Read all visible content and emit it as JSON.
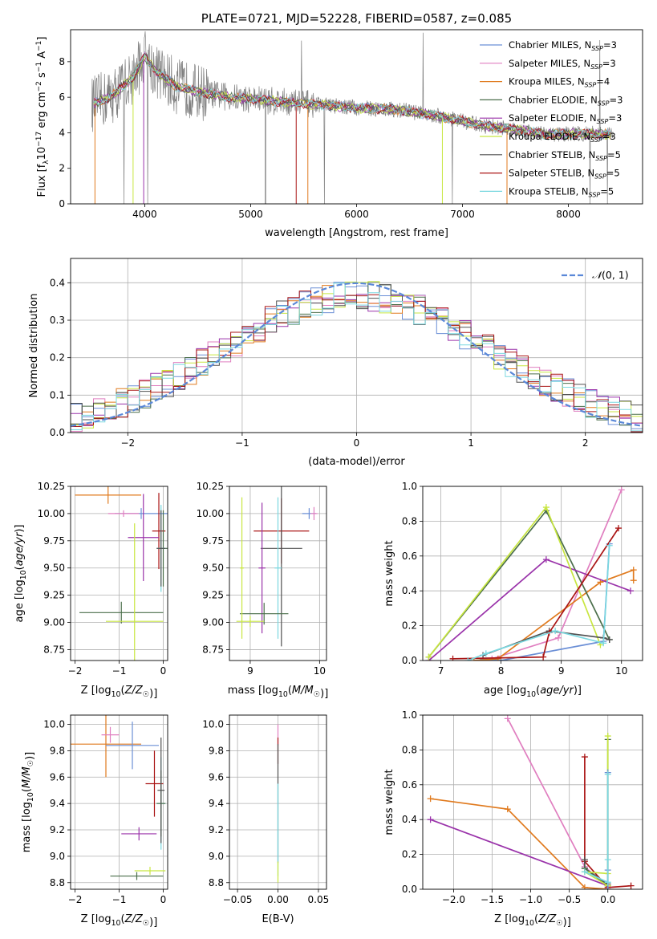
{
  "colors": {
    "Chabrier MILES": "#6b8fd6",
    "Salpeter MILES": "#e07fc0",
    "Kroupa MILES": "#e07a1e",
    "Chabrier ELODIE": "#4a6e4a",
    "Salpeter ELODIE": "#9a33aa",
    "Kroupa ELODIE": "#c8e640",
    "Chabrier STELIB": "#505050",
    "Salpeter STELIB": "#aa1515",
    "Kroupa STELIB": "#7ad8e0",
    "data": "#808080",
    "normal": "#5a88d8"
  },
  "legend_entries": [
    {
      "model": "Chabrier MILES",
      "n": "3"
    },
    {
      "model": "Salpeter MILES",
      "n": "3"
    },
    {
      "model": "Kroupa MILES",
      "n": "4"
    },
    {
      "model": "Chabrier ELODIE",
      "n": "3"
    },
    {
      "model": "Salpeter ELODIE",
      "n": "3"
    },
    {
      "model": "Kroupa ELODIE",
      "n": "3"
    },
    {
      "model": "Chabrier STELIB",
      "n": "5"
    },
    {
      "model": "Salpeter STELIB",
      "n": "5"
    },
    {
      "model": "Kroupa STELIB",
      "n": "5"
    }
  ],
  "chart_data": [
    {
      "id": "spectrum",
      "type": "line",
      "title": "PLATE=0721, MJD=52228, FIBERID=0587, z=0.085",
      "xlabel": "wavelength [Angstrom, rest frame]",
      "ylabel_parts": [
        "Flux [f",
        "λ",
        "10",
        "−17",
        " erg cm",
        "−2",
        " s",
        "−1",
        " A",
        "−1",
        "]"
      ],
      "legend_suffix_base": "N",
      "legend_suffix_sub": "SSP",
      "xlim": [
        3300,
        8700
      ],
      "ylim": [
        0,
        9.8
      ],
      "xticks": [
        4000,
        5000,
        6000,
        7000,
        8000
      ],
      "yticks": [
        0,
        2,
        4,
        6,
        8
      ],
      "continuum": [
        [
          3500,
          5.6
        ],
        [
          3700,
          6.1
        ],
        [
          3900,
          7.2
        ],
        [
          4000,
          8.3
        ],
        [
          4100,
          7.5
        ],
        [
          4300,
          6.6
        ],
        [
          4500,
          6.3
        ],
        [
          4800,
          6.0
        ],
        [
          5200,
          5.8
        ],
        [
          5600,
          5.6
        ],
        [
          6000,
          5.4
        ],
        [
          6400,
          5.3
        ],
        [
          6800,
          4.9
        ],
        [
          7200,
          4.4
        ],
        [
          7500,
          4.2
        ],
        [
          7800,
          3.9
        ],
        [
          8200,
          3.95
        ],
        [
          8400,
          3.9
        ]
      ]
    },
    {
      "id": "residuals",
      "type": "step",
      "xlabel": "(data-model)/error",
      "ylabel": "Normed distribution",
      "xlim": [
        -2.5,
        2.5
      ],
      "ylim": [
        0,
        0.465
      ],
      "xticks": [
        -2,
        -1,
        0,
        1,
        2
      ],
      "yticks": [
        0.0,
        0.1,
        0.2,
        0.3,
        0.4
      ],
      "grid": true,
      "normal_label_main": "𝒩",
      "normal_label_args": "(0, 1)",
      "bin_width": 0.1
    },
    {
      "id": "age_vs_Z",
      "type": "errorbar",
      "xlabel": "Z [log10(Z/Z☉)]",
      "ylabel": "age  [log10(age/yr)]",
      "xlim": [
        -2.1,
        0.1
      ],
      "ylim": [
        8.65,
        10.25
      ],
      "xticks": [
        -2,
        -1,
        0
      ],
      "yticks": [
        8.75,
        9.0,
        9.25,
        9.5,
        9.75,
        10.0,
        10.25
      ],
      "grid": true,
      "points": [
        {
          "m": "Kroupa MILES",
          "x": -1.25,
          "y": 10.17,
          "xerr": 0.75,
          "yerr": 0.08
        },
        {
          "m": "Chabrier MILES",
          "x": -0.5,
          "y": 10.0,
          "xerr": 0.6,
          "yerr": 0.05
        },
        {
          "m": "Salpeter MILES",
          "x": -0.9,
          "y": 10.0,
          "xerr": 0.35,
          "yerr": 0.03
        },
        {
          "m": "Salpeter STELIB",
          "x": -0.1,
          "y": 9.84,
          "xerr": 0.15,
          "yerr": 0.35
        },
        {
          "m": "Salpeter ELODIE",
          "x": -0.45,
          "y": 9.78,
          "xerr": 0.35,
          "yerr": 0.4
        },
        {
          "m": "Chabrier ELODIE",
          "x": 0.0,
          "y": 9.68,
          "xerr": 0.1,
          "yerr": 0.35
        },
        {
          "m": "Kroupa STELIB",
          "x": -0.05,
          "y": 9.68,
          "xerr": 0.1,
          "yerr": 0.4
        },
        {
          "m": "Chabrier STELIB",
          "x": -0.05,
          "y": 9.68,
          "xerr": 0.1,
          "yerr": 0.35
        },
        {
          "m": "Chabrier ELODIE",
          "x": -0.95,
          "y": 9.09,
          "xerr": 0.95,
          "yerr": 0.1
        },
        {
          "m": "Kroupa ELODIE",
          "x": -0.65,
          "y": 9.01,
          "xerr": 0.65,
          "yerr": 0.9
        }
      ]
    },
    {
      "id": "age_vs_mass",
      "type": "errorbar",
      "xlabel": "mass [log10(M/M☉)]",
      "ylabel": "",
      "xlim": [
        8.7,
        10.1
      ],
      "ylim": [
        8.65,
        10.25
      ],
      "xticks": [
        9,
        10
      ],
      "yticks": [
        8.75,
        9.0,
        9.25,
        9.5,
        9.75,
        10.0,
        10.25
      ],
      "grid": true,
      "points": [
        {
          "m": "Chabrier MILES",
          "x": 9.85,
          "y": 10.0,
          "xerr": 0.1,
          "yerr": 0.05
        },
        {
          "m": "Salpeter MILES",
          "x": 9.92,
          "y": 10.0,
          "xerr": 0.05,
          "yerr": 0.06
        },
        {
          "m": "Salpeter STELIB",
          "x": 9.45,
          "y": 9.84,
          "xerr": 0.4,
          "yerr": 0.3
        },
        {
          "m": "Chabrier STELIB",
          "x": 9.45,
          "y": 9.68,
          "xerr": 0.3,
          "yerr": 0.9
        },
        {
          "m": "Salpeter ELODIE",
          "x": 9.17,
          "y": 9.5,
          "xerr": 0.05,
          "yerr": 0.6
        },
        {
          "m": "Kroupa STELIB",
          "x": 9.4,
          "y": 9.5,
          "xerr": 0.05,
          "yerr": 0.65
        },
        {
          "m": "Chabrier ELODIE",
          "x": 9.2,
          "y": 9.08,
          "xerr": 0.35,
          "yerr": 0.1
        },
        {
          "m": "Kroupa ELODIE",
          "x": 9.0,
          "y": 9.01,
          "xerr": 0.2,
          "yerr": 0.05
        },
        {
          "m": "Kroupa ELODIE",
          "x": 8.88,
          "y": 9.5,
          "xerr": 0.03,
          "yerr": 0.65
        }
      ]
    },
    {
      "id": "weight_vs_age",
      "type": "line",
      "xlabel": "age  [log10(age/yr)]",
      "ylabel": "mass weight",
      "xlim": [
        6.7,
        10.35
      ],
      "ylim": [
        0,
        1.0
      ],
      "xticks": [
        7,
        8,
        9,
        10
      ],
      "yticks": [
        0.0,
        0.2,
        0.4,
        0.6,
        0.8,
        1.0
      ],
      "grid": true,
      "series": [
        {
          "m": "Salpeter MILES",
          "pts": [
            [
              7.85,
              0.01
            ],
            [
              8.95,
              0.13
            ],
            [
              10.0,
              0.98
            ]
          ]
        },
        {
          "m": "Chabrier MILES",
          "pts": [
            [
              7.7,
              0.01
            ],
            [
              8.0,
              0.0
            ],
            [
              9.7,
              0.11
            ],
            [
              9.8,
              0.67
            ]
          ]
        },
        {
          "m": "Kroupa MILES",
          "pts": [
            [
              7.55,
              0.0
            ],
            [
              7.95,
              0.01
            ],
            [
              9.65,
              0.45
            ],
            [
              10.2,
              0.52
            ],
            [
              10.2,
              0.46
            ]
          ]
        },
        {
          "m": "Chabrier ELODIE",
          "pts": [
            [
              6.8,
              0.02
            ],
            [
              8.75,
              0.86
            ],
            [
              9.8,
              0.12
            ]
          ]
        },
        {
          "m": "Salpeter ELODIE",
          "pts": [
            [
              6.8,
              0.0
            ],
            [
              8.75,
              0.58
            ],
            [
              10.15,
              0.4
            ]
          ]
        },
        {
          "m": "Kroupa ELODIE",
          "pts": [
            [
              6.8,
              0.02
            ],
            [
              8.75,
              0.88
            ],
            [
              9.65,
              0.09
            ]
          ]
        },
        {
          "m": "Chabrier STELIB",
          "pts": [
            [
              7.7,
              0.03
            ],
            [
              8.8,
              0.17
            ],
            [
              9.7,
              0.13
            ],
            [
              9.8,
              0.12
            ]
          ]
        },
        {
          "m": "Salpeter STELIB",
          "pts": [
            [
              7.2,
              0.01
            ],
            [
              8.7,
              0.02
            ],
            [
              8.8,
              0.16
            ],
            [
              9.95,
              0.76
            ]
          ]
        },
        {
          "m": "Kroupa STELIB",
          "pts": [
            [
              7.45,
              0.0
            ],
            [
              7.75,
              0.04
            ],
            [
              8.9,
              0.17
            ],
            [
              9.7,
              0.1
            ],
            [
              9.8,
              0.66
            ]
          ]
        }
      ]
    },
    {
      "id": "mass_vs_Z",
      "type": "errorbar",
      "xlabel": "Z [log10(Z/Z☉)]",
      "ylabel": "mass [log10(M/M☉)]",
      "xlim": [
        -2.1,
        0.1
      ],
      "ylim": [
        8.75,
        10.07
      ],
      "xticks": [
        -2,
        -1,
        0
      ],
      "yticks": [
        8.8,
        9.0,
        9.2,
        9.4,
        9.6,
        9.8,
        10.0
      ],
      "grid": true,
      "points": [
        {
          "m": "Kroupa MILES",
          "x": -1.3,
          "y": 9.85,
          "xerr": 0.8,
          "yerr": 0.25
        },
        {
          "m": "Chabrier MILES",
          "x": -0.7,
          "y": 9.84,
          "xerr": 0.6,
          "yerr": 0.18
        },
        {
          "m": "Salpeter MILES",
          "x": -1.2,
          "y": 9.92,
          "xerr": 0.2,
          "yerr": 0.06
        },
        {
          "m": "Salpeter STELIB",
          "x": -0.2,
          "y": 9.55,
          "xerr": 0.2,
          "yerr": 0.25
        },
        {
          "m": "Kroupa STELIB",
          "x": -0.05,
          "y": 9.4,
          "xerr": 0.1,
          "yerr": 0.35
        },
        {
          "m": "Chabrier ELODIE",
          "x": -0.05,
          "y": 9.4,
          "xerr": 0.1,
          "yerr": 0.25
        },
        {
          "m": "Salpeter ELODIE",
          "x": -0.55,
          "y": 9.17,
          "xerr": 0.4,
          "yerr": 0.05
        },
        {
          "m": "Chabrier STELIB",
          "x": -0.05,
          "y": 9.5,
          "xerr": 0.08,
          "yerr": 0.4
        },
        {
          "m": "Kroupa ELODIE",
          "x": -0.3,
          "y": 8.89,
          "xerr": 0.35,
          "yerr": 0.03
        },
        {
          "m": "Chabrier ELODIE",
          "x": -0.6,
          "y": 8.85,
          "xerr": 0.6,
          "yerr": 0.03
        }
      ]
    },
    {
      "id": "mass_vs_ebv",
      "type": "errorbar",
      "xlabel": "E(B-V)",
      "ylabel": "",
      "xlim": [
        -0.06,
        0.06
      ],
      "ylim": [
        8.75,
        10.07
      ],
      "xticks": [
        -0.05,
        0.0,
        0.05
      ],
      "yticks": [
        8.8,
        9.0,
        9.2,
        9.4,
        9.6,
        9.8,
        10.0
      ],
      "grid": true,
      "points": [
        {
          "m": "Salpeter MILES",
          "x": 0.0,
          "y": 9.92,
          "xerr": 0.0,
          "yerr": 0.08
        },
        {
          "m": "Salpeter STELIB",
          "x": 0.0,
          "y": 9.8,
          "xerr": 0.0,
          "yerr": 0.1
        },
        {
          "m": "Chabrier STELIB",
          "x": 0.0,
          "y": 9.4,
          "xerr": 0.0,
          "yerr": 0.45
        },
        {
          "m": "Kroupa STELIB",
          "x": 0.0,
          "y": 9.2,
          "xerr": 0.0,
          "yerr": 0.35
        },
        {
          "m": "Kroupa ELODIE",
          "x": 0.0,
          "y": 8.88,
          "xerr": 0.0,
          "yerr": 0.08
        }
      ]
    },
    {
      "id": "weight_vs_Z",
      "type": "line",
      "xlabel": "Z [log10(Z/Z☉)]",
      "ylabel": "mass weight",
      "xlim": [
        -2.4,
        0.45
      ],
      "ylim": [
        0,
        1.0
      ],
      "xticks": [
        -2.0,
        -1.5,
        -1.0,
        -0.5,
        0.0
      ],
      "yticks": [
        0.0,
        0.2,
        0.4,
        0.6,
        0.8,
        1.0
      ],
      "grid": true,
      "series": [
        {
          "m": "Salpeter MILES",
          "pts": [
            [
              -1.3,
              0.98
            ],
            [
              -0.3,
              0.13
            ],
            [
              0.0,
              0.01
            ]
          ]
        },
        {
          "m": "Kroupa MILES",
          "pts": [
            [
              -2.3,
              0.52
            ],
            [
              -1.3,
              0.46
            ],
            [
              -0.3,
              0.01
            ],
            [
              0.0,
              0.0
            ]
          ]
        },
        {
          "m": "Salpeter ELODIE",
          "pts": [
            [
              -2.3,
              0.4
            ],
            [
              0.0,
              0.02
            ]
          ]
        },
        {
          "m": "Salpeter STELIB",
          "pts": [
            [
              -0.3,
              0.76
            ],
            [
              -0.3,
              0.16
            ],
            [
              0.0,
              0.01
            ],
            [
              0.3,
              0.02
            ]
          ]
        },
        {
          "m": "Chabrier STELIB",
          "pts": [
            [
              -0.3,
              0.17
            ],
            [
              -0.3,
              0.12
            ],
            [
              0.0,
              0.03
            ]
          ]
        },
        {
          "m": "Chabrier ELODIE",
          "pts": [
            [
              -0.3,
              0.12
            ],
            [
              0.0,
              0.02
            ],
            [
              0.0,
              0.86
            ]
          ]
        },
        {
          "m": "Kroupa ELODIE",
          "pts": [
            [
              0.0,
              0.88
            ],
            [
              0.0,
              0.09
            ],
            [
              -0.3,
              0.1
            ],
            [
              0.0,
              0.02
            ]
          ]
        },
        {
          "m": "Chabrier MILES",
          "pts": [
            [
              0.0,
              0.67
            ],
            [
              0.0,
              0.11
            ],
            [
              0.0,
              0.0
            ]
          ]
        },
        {
          "m": "Kroupa STELIB",
          "pts": [
            [
              -0.3,
              0.1
            ],
            [
              0.0,
              0.04
            ],
            [
              0.0,
              0.66
            ],
            [
              0.0,
              0.17
            ]
          ]
        }
      ]
    }
  ]
}
